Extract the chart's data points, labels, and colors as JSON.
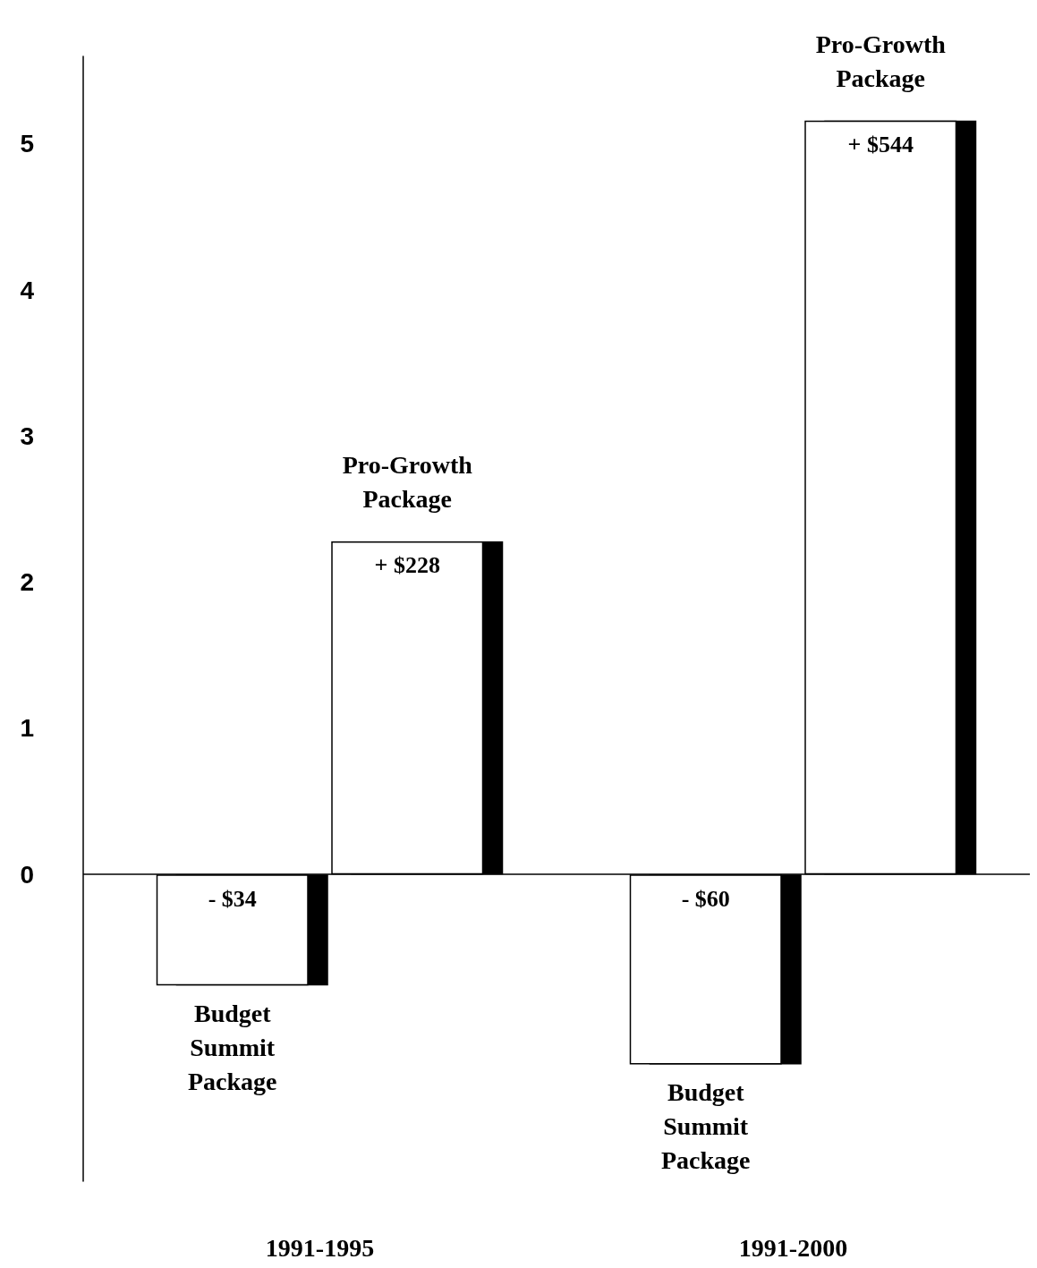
{
  "chart_data": {
    "type": "bar",
    "categories": [
      "1991-1995",
      "1991-2000"
    ],
    "series": [
      {
        "color": "#ffffff",
        "values": [
          -0.76,
          -1.3
        ]
      },
      {
        "color": "#ffffff",
        "values": [
          2.28,
          5.16
        ]
      }
    ],
    "annotations": [
      "- $34",
      "Budget Summit Package",
      "+ $228",
      "Pro-Growth Package",
      "- $60",
      "Budget Summit Package",
      "+ $544",
      "Pro-Growth Package"
    ],
    "ylim": [
      -2.1,
      5.6
    ],
    "yticks": [
      0,
      1,
      2,
      3,
      4,
      5
    ],
    "grid": false,
    "ref_lines": [
      {
        "axis": "y",
        "value": 0,
        "color": "#000000"
      }
    ]
  }
}
